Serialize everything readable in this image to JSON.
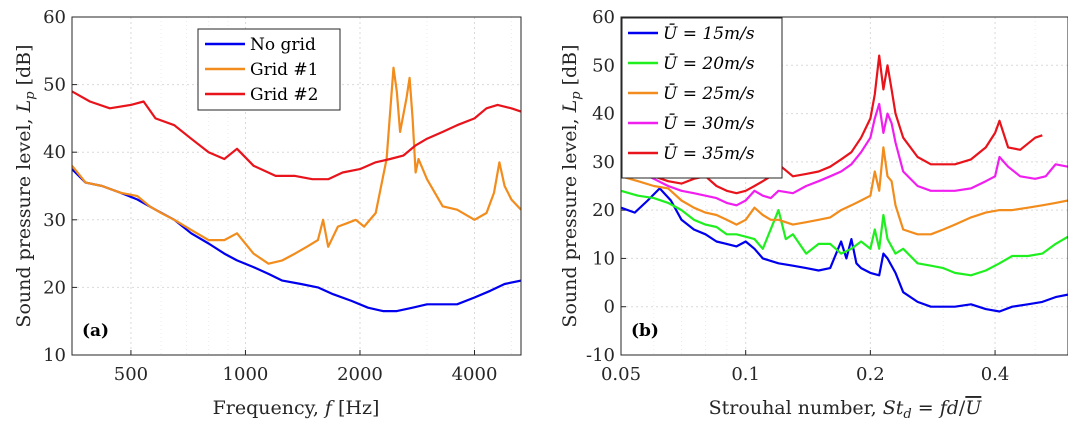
{
  "chart_data": [
    {
      "type": "line",
      "panel_label": "(a)",
      "xlabel": "Frequency, f [Hz]",
      "ylabel": "Sound pressure level, L_p [dB]",
      "xscale": "log",
      "xlim": [
        350,
        5300
      ],
      "ylim": [
        10,
        60
      ],
      "xticks": [
        500,
        1000,
        2000,
        4000
      ],
      "xtick_labels": [
        "500",
        "1000",
        "2000",
        "4000"
      ],
      "yticks": [
        10,
        20,
        30,
        40,
        50,
        60
      ],
      "ytick_labels": [
        "10",
        "20",
        "30",
        "40",
        "50",
        "60"
      ],
      "grid": true,
      "legend_position": "top-center",
      "series": [
        {
          "name": "No grid",
          "color": "#0000ee",
          "x": [
            350,
            380,
            420,
            470,
            520,
            580,
            650,
            720,
            800,
            880,
            950,
            1050,
            1150,
            1250,
            1400,
            1550,
            1700,
            1900,
            2100,
            2300,
            2500,
            2750,
            3000,
            3300,
            3600,
            4000,
            4400,
            4800,
            5300
          ],
          "y": [
            37.5,
            35.5,
            35,
            34,
            33,
            31.5,
            30,
            28,
            26.5,
            25,
            24,
            23,
            22,
            21,
            20.5,
            20,
            19,
            18,
            17,
            16.5,
            16.5,
            17,
            17.5,
            17.5,
            17.5,
            18.5,
            19.5,
            20.5,
            21
          ]
        },
        {
          "name": "Grid #1",
          "color": "#f28c1c",
          "x": [
            350,
            380,
            420,
            470,
            520,
            560,
            600,
            650,
            720,
            800,
            880,
            950,
            1050,
            1150,
            1250,
            1350,
            1450,
            1550,
            1600,
            1650,
            1750,
            1850,
            1950,
            2050,
            2200,
            2350,
            2450,
            2500,
            2550,
            2650,
            2700,
            2750,
            2800,
            2850,
            3000,
            3300,
            3600,
            4000,
            4300,
            4500,
            4650,
            4800,
            5000,
            5300
          ],
          "y": [
            38,
            35.5,
            35,
            34,
            33.5,
            32,
            31,
            30,
            28.5,
            27,
            27,
            28,
            25,
            23.5,
            24,
            25,
            26,
            27,
            30,
            26,
            29,
            29.5,
            30,
            29,
            31,
            39,
            52.5,
            49,
            43,
            48,
            51,
            45,
            37,
            39,
            36,
            32,
            31.5,
            30,
            31,
            34,
            38.5,
            35,
            33,
            31.5
          ]
        },
        {
          "name": "Grid #2",
          "color": "#e8131b",
          "x": [
            350,
            390,
            440,
            500,
            540,
            580,
            650,
            720,
            800,
            880,
            950,
            1050,
            1200,
            1350,
            1500,
            1650,
            1800,
            2000,
            2200,
            2400,
            2600,
            2800,
            3000,
            3300,
            3600,
            4000,
            4300,
            4600,
            5000,
            5300
          ],
          "y": [
            49,
            47.5,
            46.5,
            47,
            47.5,
            45,
            44,
            42,
            40,
            39,
            40.5,
            38,
            36.5,
            36.5,
            36,
            36,
            37,
            37.5,
            38.5,
            39,
            39.5,
            41,
            42,
            43,
            44,
            45,
            46.5,
            47,
            46.5,
            46
          ]
        }
      ]
    },
    {
      "type": "line",
      "panel_label": "(b)",
      "xlabel": "Strouhal number, St_d = fd/U",
      "ylabel": "Sound pressure level, L_p [dB]",
      "xscale": "log",
      "xlim": [
        0.05,
        0.6
      ],
      "ylim": [
        -10,
        60
      ],
      "xticks": [
        0.05,
        0.1,
        0.2,
        0.4
      ],
      "xtick_labels": [
        "0.05",
        "0.1",
        "0.2",
        "0.4"
      ],
      "yticks": [
        -10,
        0,
        10,
        20,
        30,
        40,
        50,
        60
      ],
      "ytick_labels": [
        "-10",
        "0",
        "10",
        "20",
        "30",
        "40",
        "50",
        "60"
      ],
      "grid": true,
      "legend_position": "top-left",
      "series": [
        {
          "name": "Ū = 15m/s",
          "color": "#0000ee",
          "x": [
            0.05,
            0.054,
            0.058,
            0.062,
            0.066,
            0.07,
            0.075,
            0.08,
            0.085,
            0.09,
            0.095,
            0.1,
            0.105,
            0.11,
            0.12,
            0.13,
            0.14,
            0.15,
            0.16,
            0.17,
            0.175,
            0.18,
            0.185,
            0.19,
            0.2,
            0.21,
            0.215,
            0.22,
            0.23,
            0.24,
            0.26,
            0.28,
            0.3,
            0.32,
            0.35,
            0.38,
            0.41,
            0.44,
            0.48,
            0.52,
            0.56,
            0.6
          ],
          "y": [
            20.5,
            19.5,
            22,
            24.5,
            22,
            18,
            16,
            15,
            13.5,
            13,
            12.5,
            13.5,
            12,
            10,
            9,
            8.5,
            8,
            7.5,
            8,
            13.5,
            10,
            14,
            9,
            8,
            7,
            6.5,
            11,
            10,
            7,
            3,
            1,
            0,
            0,
            0,
            0.5,
            -0.5,
            -1,
            0,
            0.5,
            1,
            2,
            2.5
          ]
        },
        {
          "name": "Ū = 20m/s",
          "color": "#1fef1f",
          "x": [
            0.05,
            0.055,
            0.06,
            0.065,
            0.07,
            0.075,
            0.08,
            0.085,
            0.09,
            0.095,
            0.1,
            0.105,
            0.11,
            0.12,
            0.125,
            0.13,
            0.14,
            0.15,
            0.16,
            0.17,
            0.18,
            0.19,
            0.2,
            0.205,
            0.21,
            0.215,
            0.22,
            0.23,
            0.24,
            0.26,
            0.28,
            0.3,
            0.32,
            0.35,
            0.38,
            0.41,
            0.44,
            0.48,
            0.52,
            0.56,
            0.6
          ],
          "y": [
            24,
            23,
            22.5,
            21.5,
            20,
            18,
            17,
            16.5,
            15,
            15,
            14.5,
            14,
            12,
            20,
            14,
            15,
            11,
            13,
            13,
            11,
            12,
            13.5,
            12,
            16,
            12,
            19,
            14,
            11,
            12,
            9,
            8.5,
            8,
            7,
            6.5,
            7.5,
            9,
            10.5,
            10.5,
            11,
            13,
            14.5
          ]
        },
        {
          "name": "Ū = 25m/s",
          "color": "#f28c1c",
          "x": [
            0.05,
            0.055,
            0.06,
            0.065,
            0.07,
            0.075,
            0.08,
            0.085,
            0.09,
            0.095,
            0.1,
            0.105,
            0.11,
            0.115,
            0.12,
            0.13,
            0.14,
            0.15,
            0.16,
            0.17,
            0.18,
            0.19,
            0.2,
            0.205,
            0.21,
            0.215,
            0.22,
            0.225,
            0.23,
            0.24,
            0.26,
            0.28,
            0.3,
            0.32,
            0.35,
            0.38,
            0.41,
            0.44,
            0.48,
            0.52,
            0.56,
            0.6
          ],
          "y": [
            27,
            26,
            25,
            24.5,
            22,
            20.5,
            19.5,
            19,
            18,
            17,
            18,
            20.5,
            19,
            18,
            18,
            17,
            17.5,
            18,
            18.5,
            20,
            21,
            22,
            23,
            28,
            24,
            33,
            27,
            26,
            21,
            16,
            15,
            15,
            16,
            17,
            18.5,
            19.5,
            20,
            20,
            20.5,
            21,
            21.5,
            22
          ]
        },
        {
          "name": "Ū = 30m/s",
          "color": "#f01ff0",
          "x": [
            0.05,
            0.055,
            0.06,
            0.065,
            0.07,
            0.075,
            0.08,
            0.085,
            0.09,
            0.095,
            0.1,
            0.105,
            0.11,
            0.115,
            0.12,
            0.13,
            0.14,
            0.15,
            0.16,
            0.17,
            0.18,
            0.19,
            0.2,
            0.205,
            0.21,
            0.215,
            0.22,
            0.225,
            0.23,
            0.24,
            0.26,
            0.28,
            0.3,
            0.32,
            0.35,
            0.38,
            0.4,
            0.41,
            0.43,
            0.46,
            0.5,
            0.53,
            0.56,
            0.6
          ],
          "y": [
            30,
            28,
            26.5,
            25,
            24,
            23.5,
            23,
            22.5,
            21.5,
            21,
            22,
            24,
            23,
            22.5,
            24,
            23.5,
            25,
            26,
            27,
            28,
            29.5,
            32,
            35,
            39,
            42,
            36,
            40,
            38,
            34,
            28,
            25,
            24,
            24,
            24,
            24.5,
            26,
            27,
            31,
            29,
            27,
            26.5,
            27,
            29.5,
            29
          ]
        },
        {
          "name": "Ū = 35m/s",
          "color": "#e8131b",
          "x": [
            0.05,
            0.055,
            0.06,
            0.065,
            0.07,
            0.075,
            0.08,
            0.085,
            0.09,
            0.095,
            0.1,
            0.105,
            0.11,
            0.115,
            0.12,
            0.13,
            0.14,
            0.15,
            0.16,
            0.17,
            0.18,
            0.19,
            0.2,
            0.205,
            0.21,
            0.215,
            0.22,
            0.225,
            0.23,
            0.24,
            0.26,
            0.28,
            0.3,
            0.32,
            0.35,
            0.38,
            0.4,
            0.41,
            0.43,
            0.46,
            0.5,
            0.52
          ],
          "y": [
            31,
            29,
            27,
            26,
            25.5,
            26.5,
            27,
            25,
            24,
            23.5,
            24,
            25,
            26,
            27,
            29.5,
            27,
            27.5,
            28,
            29,
            30.5,
            32,
            35,
            39,
            44,
            52,
            45,
            50,
            45,
            40,
            35,
            31,
            29.5,
            29.5,
            29.5,
            30.5,
            33,
            36,
            38.5,
            33,
            32.5,
            35,
            35.5
          ]
        }
      ]
    }
  ]
}
